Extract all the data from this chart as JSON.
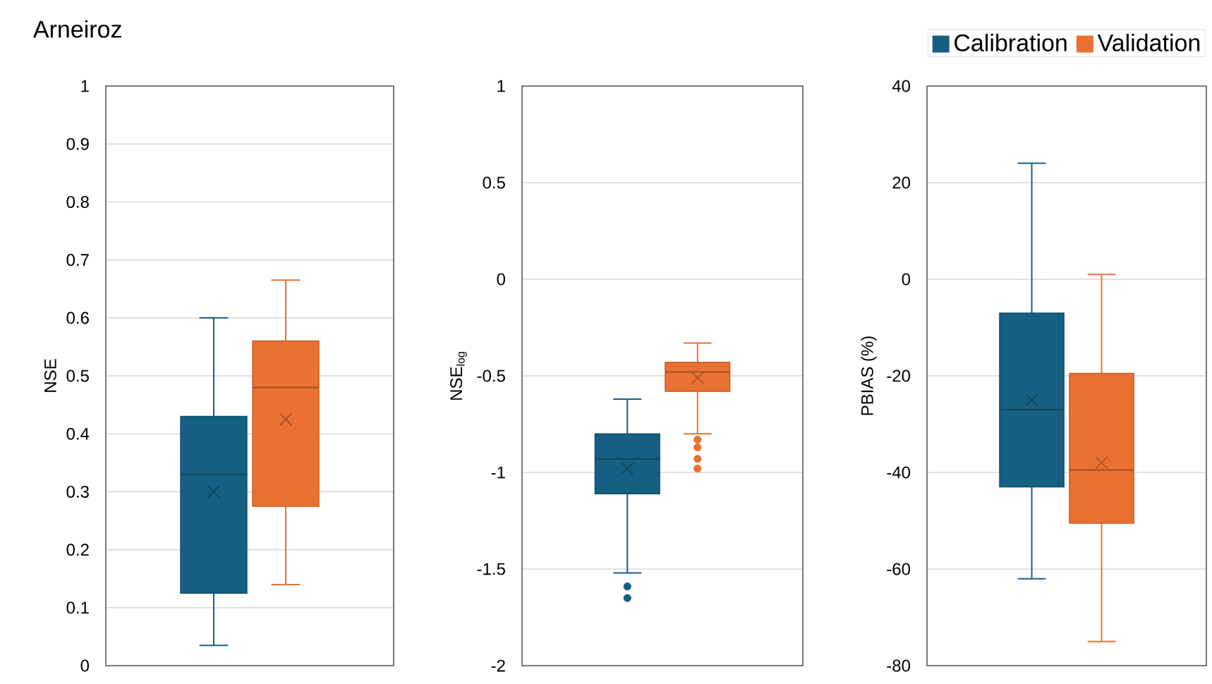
{
  "chart_data": [
    {
      "type": "box",
      "title": "Arneiroz",
      "ylabel": "NSE",
      "categories": [
        null
      ],
      "ylim": [
        0,
        1
      ],
      "yticks": [
        0,
        0.1,
        0.2,
        0.3,
        0.4,
        0.5,
        0.6,
        0.7,
        0.8,
        0.9,
        1
      ],
      "grid": "y",
      "tick_labels": "y",
      "series": [
        {
          "color": "#155f82",
          "boxes": [
            {
              "low": 0.035,
              "q1": 0.125,
              "median": 0.33,
              "q3": 0.43,
              "high": 0.6,
              "mean": 0.3
            }
          ]
        },
        {
          "color": "#e97132",
          "boxes": [
            {
              "low": 0.14,
              "q1": 0.275,
              "median": 0.48,
              "q3": 0.56,
              "high": 0.665,
              "mean": 0.425
            }
          ]
        }
      ]
    },
    {
      "type": "box",
      "ylabel": "NSE$_{log}$",
      "categories": [
        null
      ],
      "ylim": [
        -2,
        1
      ],
      "yticks": [
        -2,
        -1.5,
        -1,
        -0.5,
        0,
        0.5,
        1
      ],
      "grid": "y",
      "tick_labels": "y",
      "series": [
        {
          "color": "#155f82",
          "boxes": [
            {
              "low": -1.52,
              "q1": -1.11,
              "median": -0.93,
              "q3": -0.8,
              "high": -0.62,
              "mean": -0.98,
              "outliers": [
                -1.59,
                -1.65
              ]
            }
          ]
        },
        {
          "color": "#e97132",
          "boxes": [
            {
              "low": -0.8,
              "q1": -0.58,
              "median": -0.48,
              "q3": -0.43,
              "high": -0.33,
              "mean": -0.51,
              "outliers": [
                -0.83,
                -0.87,
                -0.93,
                -0.98
              ]
            }
          ]
        }
      ]
    },
    {
      "type": "box",
      "ylabel": "PBIAS (%)",
      "categories": [
        null
      ],
      "ylim": [
        -80,
        40
      ],
      "yticks": [
        -80,
        -60,
        -40,
        -20,
        0,
        20,
        40
      ],
      "grid": "y",
      "tick_labels": "y",
      "legend": "top",
      "series": [
        {
          "name": "Calibration",
          "color": "#155f82",
          "boxes": [
            {
              "low": -62,
              "q1": -43,
              "median": -27,
              "q3": -7,
              "high": 24,
              "mean": -25
            }
          ]
        },
        {
          "name": "Validation",
          "color": "#e97132",
          "boxes": [
            {
              "low": -75,
              "q1": -50.5,
              "median": -39.5,
              "q3": -19.5,
              "high": 1,
              "mean": -38
            }
          ]
        }
      ]
    }
  ]
}
